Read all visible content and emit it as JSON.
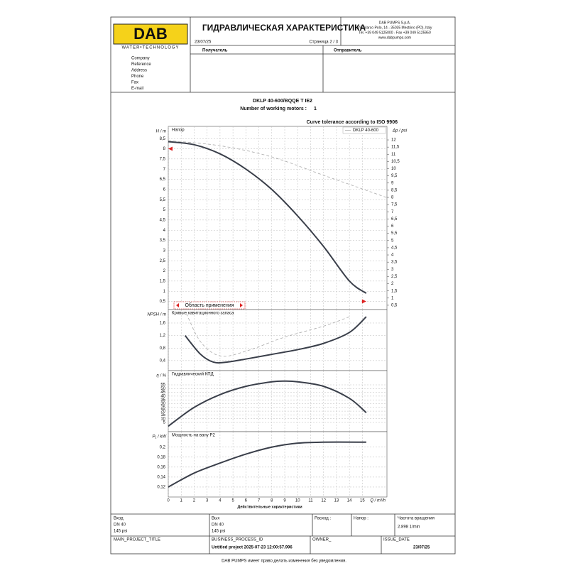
{
  "header": {
    "logo": "DAB",
    "logo_subtitle": "WATER•TECHNOLOGY",
    "title": "ГИДРАВЛИЧЕСКАЯ ХАРАКТЕРИСТИКА",
    "company_lines": [
      "DAB PUMPS S.p.A.",
      "Via Marco Polo, 14 - 35035 Mestrino (PD), Italy",
      "Tel. +39 049 5125000 - Fax +39 049 5125950",
      "www.dabpumps.com"
    ],
    "date": "23/07/25",
    "page": "Страница 2 / 3"
  },
  "recipient": "Получатель",
  "sender": "Отправитель",
  "fields": [
    "Company",
    "Reference",
    "Address",
    "Phone",
    "Fax",
    "E-mail"
  ],
  "product": {
    "model": "DKLP 40-600/BQQE T IE2",
    "motors_label": "Number of working motors :",
    "motors_value": "1"
  },
  "tolerance_note": "Curve tolerance according to ISO 9906",
  "x_axis_title": "Действительные характеристики",
  "chart_data": [
    {
      "type": "line",
      "y_label": "H / m",
      "y2_label": "Δp / psi",
      "annotation": "Напор",
      "range_label": "Область применения",
      "xlim": [
        0,
        16.9
      ],
      "ylim": [
        0.1,
        9.1
      ],
      "yticks": [
        {
          "value": 0.5,
          "label": "0,5"
        },
        1,
        {
          "value": 1.5,
          "label": "1,5"
        },
        2,
        {
          "value": 2.5,
          "label": "2,5"
        },
        3,
        {
          "value": 3.5,
          "label": "3,5"
        },
        4,
        {
          "value": 4.5,
          "label": "4,5"
        },
        5,
        {
          "value": 5.5,
          "label": "5,5"
        },
        6,
        {
          "value": 6.5,
          "label": "6,5"
        },
        7,
        {
          "value": 7.5,
          "label": "7,5"
        },
        8,
        {
          "value": 8.5,
          "label": "8,5"
        }
      ],
      "y2lim": [
        0.2,
        12.94
      ],
      "y2ticks": [
        {
          "value": 0.5,
          "label": "0,5"
        },
        1,
        {
          "value": 1.5,
          "label": "1,5"
        },
        2,
        {
          "value": 2.5,
          "label": "2,5"
        },
        3,
        {
          "value": 3.5,
          "label": "3,5"
        },
        4,
        {
          "value": 4.5,
          "label": "4,5"
        },
        5,
        {
          "value": 5.5,
          "label": "5,5"
        },
        6,
        {
          "value": 6.5,
          "label": "6,5"
        },
        7,
        {
          "value": 7.5,
          "label": "7,5"
        },
        8,
        {
          "value": 8.5,
          "label": "8,5"
        },
        9,
        {
          "value": 9.5,
          "label": "9,5"
        },
        10,
        {
          "value": 10.5,
          "label": "10,5"
        },
        11,
        {
          "value": 11.5,
          "label": "11,5"
        },
        12
      ],
      "range_markers": [
        {
          "x": 0,
          "y": 8
        },
        {
          "x": 15.3,
          "y": 0.5
        }
      ],
      "series": [
        {
          "color": "#3a3f4a",
          "x": [
            0,
            2,
            4,
            6,
            8,
            10,
            12,
            14,
            15.3
          ],
          "values": [
            8.35,
            8.2,
            7.75,
            7.0,
            6.0,
            4.7,
            3.2,
            1.5,
            0.9
          ]
        },
        {
          "name": "DKLP 40-600",
          "color": "#aaaaaa",
          "dashed": true,
          "x": [
            0,
            4,
            8,
            12,
            16.9
          ],
          "values": [
            8.4,
            8.15,
            7.6,
            6.7,
            5.6
          ]
        }
      ]
    },
    {
      "type": "line",
      "y_label": "NPSH / m",
      "annotation": "Кривые кавитационного запаса",
      "xlim": [
        0,
        16.9
      ],
      "ylim": [
        0.08,
        2.03
      ],
      "yticks": [
        {
          "value": 0.4,
          "label": "0,4"
        },
        {
          "value": 0.8,
          "label": "0,8"
        },
        {
          "value": 1.2,
          "label": "1,2"
        },
        {
          "value": 1.6,
          "label": "1,6"
        }
      ],
      "series": [
        {
          "color": "#3a3f4a",
          "x": [
            1.3,
            2.5,
            3.5,
            4.5,
            6,
            8,
            10,
            12,
            14,
            15.3
          ],
          "values": [
            1.2,
            0.6,
            0.35,
            0.35,
            0.45,
            0.6,
            0.75,
            0.95,
            1.3,
            1.8
          ]
        },
        {
          "color": "#aaaaaa",
          "dashed": true,
          "x": [
            1.4,
            2.5,
            4,
            6,
            9,
            12,
            14
          ],
          "values": [
            1.9,
            1.0,
            0.55,
            0.7,
            1.15,
            1.5,
            1.8
          ]
        }
      ]
    },
    {
      "type": "line",
      "y_label": "η / %",
      "annotation": "Гидравлический КПД",
      "xlim": [
        0,
        16.9
      ],
      "ylim": [
        -7.3,
        73.9
      ],
      "yticks": [
        5,
        10,
        15,
        20,
        25,
        30,
        35,
        40,
        45,
        50,
        55
      ],
      "series": [
        {
          "color": "#3a3f4a",
          "x": [
            0,
            2,
            4,
            6,
            8,
            9,
            10,
            12,
            14,
            15.3
          ],
          "values": [
            0,
            25,
            42,
            53,
            59,
            60,
            59,
            53,
            37,
            18
          ]
        }
      ]
    },
    {
      "type": "line",
      "y_label": "P₁ / kW",
      "annotation": "Мощность на валу P2",
      "x_label": "Q / m³/h",
      "xlim": [
        0,
        16.9
      ],
      "ylim": [
        0.1,
        0.231
      ],
      "yticks": [
        {
          "value": 0.12,
          "label": "0,12"
        },
        {
          "value": 0.14,
          "label": "0,14"
        },
        {
          "value": 0.16,
          "label": "0,16"
        },
        {
          "value": 0.18,
          "label": "0,18"
        },
        {
          "value": 0.2,
          "label": "0,2"
        }
      ],
      "xticks": [
        0,
        1,
        2,
        3,
        4,
        5,
        6,
        7,
        8,
        9,
        10,
        11,
        12,
        13,
        14,
        15
      ],
      "series": [
        {
          "color": "#3a3f4a",
          "x": [
            0,
            2,
            4,
            6,
            8,
            10,
            12,
            15.3
          ],
          "values": [
            0.12,
            0.148,
            0.168,
            0.186,
            0.2,
            0.208,
            0.21,
            0.21
          ]
        }
      ]
    }
  ],
  "bottom": {
    "inlet_label": "Вход",
    "inlet_dn": "DN 40",
    "inlet_p": "145 psi",
    "outlet_label": "Вых",
    "outlet_dn": "DN 40",
    "outlet_p": "145 psi",
    "flow_label": "Расход :",
    "head_label": "Напор :",
    "speed_label": "Частота вращения",
    "speed_value": "2.898 1/min",
    "project_label": "MAIN_PROJECT_TITLE",
    "process_label": "BUSINESS_PROCESS_ID",
    "process_value": "Untitled project 2025-07-23 12:00:57.996",
    "owner_label": "OWNER_",
    "issue_label": "ISSUE_DATE",
    "issue_value": "23/07/25"
  },
  "footer": "DAB PUMPS имеет право делать изменения без уведомления."
}
